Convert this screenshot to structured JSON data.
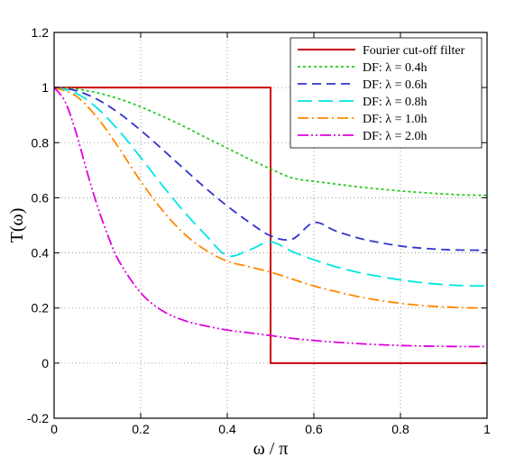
{
  "chart_data": {
    "type": "line",
    "xlabel": "ω / π",
    "ylabel": "T(ω)",
    "xlim": [
      0,
      1
    ],
    "ylim": [
      -0.2,
      1.2
    ],
    "xticks": [
      0,
      0.2,
      0.4,
      0.6,
      0.8,
      1
    ],
    "xtick_labels": [
      "0",
      "0.2",
      "0.4",
      "0.6",
      "0.8",
      "1"
    ],
    "yticks": [
      -0.2,
      0,
      0.2,
      0.4,
      0.6,
      0.8,
      1,
      1.2
    ],
    "ytick_labels": [
      "-0.2",
      "0",
      "0.2",
      "0.4",
      "0.6",
      "0.8",
      "1",
      "1.2"
    ],
    "grid": true,
    "legend_position": "top-right",
    "series": [
      {
        "name": "Fourier cut-off filter",
        "color": "#cc0000",
        "dash": "solid",
        "x": [
          0,
          0.5,
          0.5,
          1
        ],
        "y": [
          1,
          1,
          0,
          0
        ]
      },
      {
        "name": "DF: λ = 0.4h",
        "color": "#22cc22",
        "dash": "dot",
        "x": [
          0,
          0.05,
          0.1,
          0.15,
          0.2,
          0.25,
          0.3,
          0.35,
          0.4,
          0.45,
          0.5,
          0.55,
          0.6,
          0.65,
          0.7,
          0.75,
          0.8,
          0.85,
          0.9,
          0.95,
          1
        ],
        "y": [
          1,
          0.995,
          0.981,
          0.959,
          0.93,
          0.896,
          0.859,
          0.819,
          0.78,
          0.741,
          0.705,
          0.672,
          0.66,
          0.65,
          0.64,
          0.632,
          0.625,
          0.619,
          0.614,
          0.61,
          0.609
        ]
      },
      {
        "name": "DF: λ = 0.6h",
        "color": "#3333cc",
        "dash": "dash",
        "x": [
          0,
          0.05,
          0.1,
          0.15,
          0.2,
          0.25,
          0.3,
          0.35,
          0.4,
          0.45,
          0.5,
          0.55,
          0.6,
          0.65,
          0.7,
          0.75,
          0.8,
          0.85,
          0.9,
          0.95,
          1
        ],
        "y": [
          1,
          0.989,
          0.957,
          0.907,
          0.845,
          0.776,
          0.705,
          0.635,
          0.57,
          0.512,
          0.462,
          0.45,
          0.51,
          0.48,
          0.455,
          0.438,
          0.425,
          0.417,
          0.412,
          0.41,
          0.41
        ]
      },
      {
        "name": "DF: λ = 0.8h",
        "color": "#00e5e5",
        "dash": "longdash",
        "x": [
          0,
          0.05,
          0.1,
          0.15,
          0.2,
          0.25,
          0.3,
          0.35,
          0.4,
          0.45,
          0.5,
          0.55,
          0.6,
          0.65,
          0.7,
          0.75,
          0.8,
          0.85,
          0.9,
          0.95,
          1
        ],
        "y": [
          1,
          0.98,
          0.925,
          0.843,
          0.746,
          0.645,
          0.55,
          0.465,
          0.39,
          0.41,
          0.44,
          0.405,
          0.375,
          0.35,
          0.33,
          0.315,
          0.302,
          0.292,
          0.285,
          0.281,
          0.28
        ]
      },
      {
        "name": "DF: λ = 1.0h",
        "color": "#ff8800",
        "dash": "dashdot",
        "x": [
          0,
          0.05,
          0.1,
          0.15,
          0.2,
          0.25,
          0.3,
          0.35,
          0.4,
          0.45,
          0.5,
          0.55,
          0.6,
          0.65,
          0.7,
          0.75,
          0.8,
          0.85,
          0.9,
          0.95,
          1
        ],
        "y": [
          1,
          0.97,
          0.89,
          0.78,
          0.66,
          0.555,
          0.47,
          0.41,
          0.37,
          0.35,
          0.33,
          0.305,
          0.28,
          0.26,
          0.242,
          0.228,
          0.217,
          0.209,
          0.204,
          0.201,
          0.2
        ]
      },
      {
        "name": "DF: λ = 2.0h",
        "color": "#dd00dd",
        "dash": "dashdotdot",
        "x": [
          0,
          0.025,
          0.05,
          0.075,
          0.1,
          0.125,
          0.15,
          0.2,
          0.25,
          0.3,
          0.35,
          0.4,
          0.45,
          0.5,
          0.55,
          0.6,
          0.65,
          0.7,
          0.75,
          0.8,
          0.85,
          0.9,
          0.95,
          1
        ],
        "y": [
          1,
          0.95,
          0.84,
          0.7,
          0.57,
          0.46,
          0.37,
          0.255,
          0.19,
          0.155,
          0.135,
          0.12,
          0.11,
          0.1,
          0.09,
          0.082,
          0.076,
          0.071,
          0.067,
          0.064,
          0.062,
          0.061,
          0.06,
          0.06
        ]
      }
    ]
  }
}
